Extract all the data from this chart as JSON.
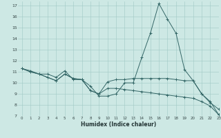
{
  "xlabel": "Humidex (Indice chaleur)",
  "bg_color": "#cde8e4",
  "grid_color": "#a0c8c4",
  "line_color": "#336666",
  "xlim": [
    -0.5,
    23
  ],
  "ylim": [
    7,
    17.4
  ],
  "xticks": [
    0,
    1,
    2,
    3,
    4,
    5,
    6,
    7,
    8,
    9,
    10,
    11,
    12,
    13,
    14,
    15,
    16,
    17,
    18,
    19,
    20,
    21,
    22,
    23
  ],
  "yticks": [
    7,
    8,
    9,
    10,
    11,
    12,
    13,
    14,
    15,
    16,
    17
  ],
  "line1_x": [
    0,
    1,
    2,
    3,
    4,
    5,
    6,
    7,
    8,
    9,
    10,
    11,
    12,
    13,
    14,
    15,
    16,
    17,
    18,
    19,
    20,
    21,
    22,
    23
  ],
  "line1_y": [
    11.3,
    11.1,
    10.8,
    10.8,
    10.5,
    11.1,
    10.3,
    10.3,
    9.7,
    8.8,
    8.8,
    9.0,
    10.0,
    10.0,
    12.3,
    14.5,
    17.2,
    15.8,
    14.5,
    11.2,
    10.2,
    9.0,
    8.2,
    7.6
  ],
  "line2_x": [
    0,
    1,
    2,
    3,
    4,
    5,
    6,
    7,
    8,
    9,
    10,
    11,
    12,
    13,
    14,
    15,
    16,
    17,
    18,
    19,
    20,
    21,
    22,
    23
  ],
  "line2_y": [
    11.3,
    11.0,
    10.8,
    10.5,
    10.2,
    10.8,
    10.4,
    10.3,
    9.3,
    9.0,
    10.1,
    10.3,
    10.3,
    10.4,
    10.4,
    10.4,
    10.4,
    10.4,
    10.3,
    10.2,
    10.2,
    9.0,
    8.3,
    7.1
  ],
  "line3_x": [
    0,
    1,
    2,
    3,
    4,
    5,
    6,
    7,
    8,
    9,
    10,
    11,
    12,
    13,
    14,
    15,
    16,
    17,
    18,
    19,
    20,
    21,
    22,
    23
  ],
  "line3_y": [
    11.3,
    11.0,
    10.8,
    10.5,
    10.2,
    10.8,
    10.4,
    10.3,
    9.3,
    9.0,
    9.5,
    9.5,
    9.4,
    9.3,
    9.2,
    9.1,
    9.0,
    8.9,
    8.8,
    8.7,
    8.6,
    8.3,
    7.9,
    7.1
  ]
}
